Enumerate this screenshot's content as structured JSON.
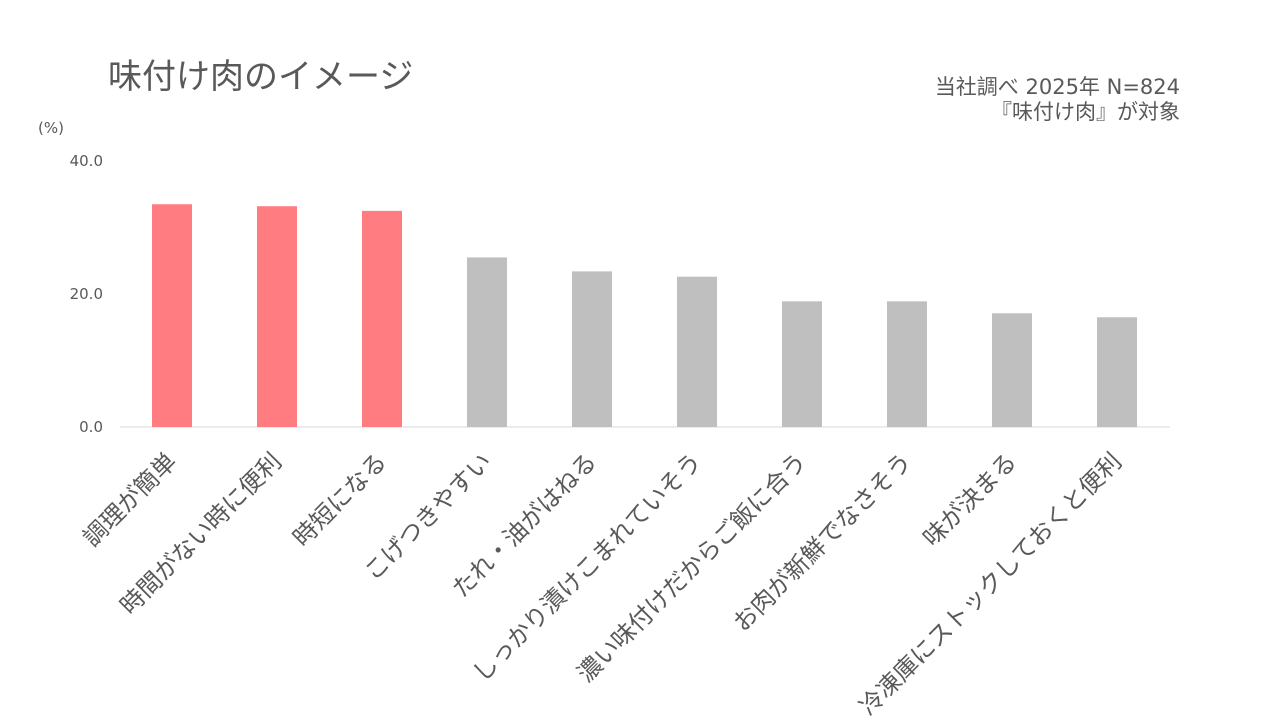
{
  "chart_data": {
    "type": "bar",
    "title": "味付け肉のイメージ",
    "notes": [
      "当社調べ 2025年 N=824",
      "『味付け肉』が対象"
    ],
    "ylabel": "(%)",
    "ylim": [
      0,
      40
    ],
    "yticks": [
      "0.0",
      "20.0",
      "40.0"
    ],
    "grid": false,
    "categories": [
      "調理が簡単",
      "時間がない時に便利",
      "時短になる",
      "こげつきやすい",
      "たれ・油がはねる",
      "しっかり漬けこまれていそう",
      "濃い味付けだからご飯に合う",
      "お肉が新鮮でなさそう",
      "味が決まる",
      "冷凍庫にストックしておくと便利"
    ],
    "values": [
      33.5,
      33.2,
      32.5,
      25.5,
      23.4,
      22.6,
      18.9,
      18.9,
      17.1,
      16.5
    ],
    "highlight": [
      true,
      true,
      true,
      false,
      false,
      false,
      false,
      false,
      false,
      false
    ],
    "colors": {
      "highlight": "#FF7C80",
      "default": "#BFBFBF",
      "axis": "#D9D9D9"
    }
  }
}
